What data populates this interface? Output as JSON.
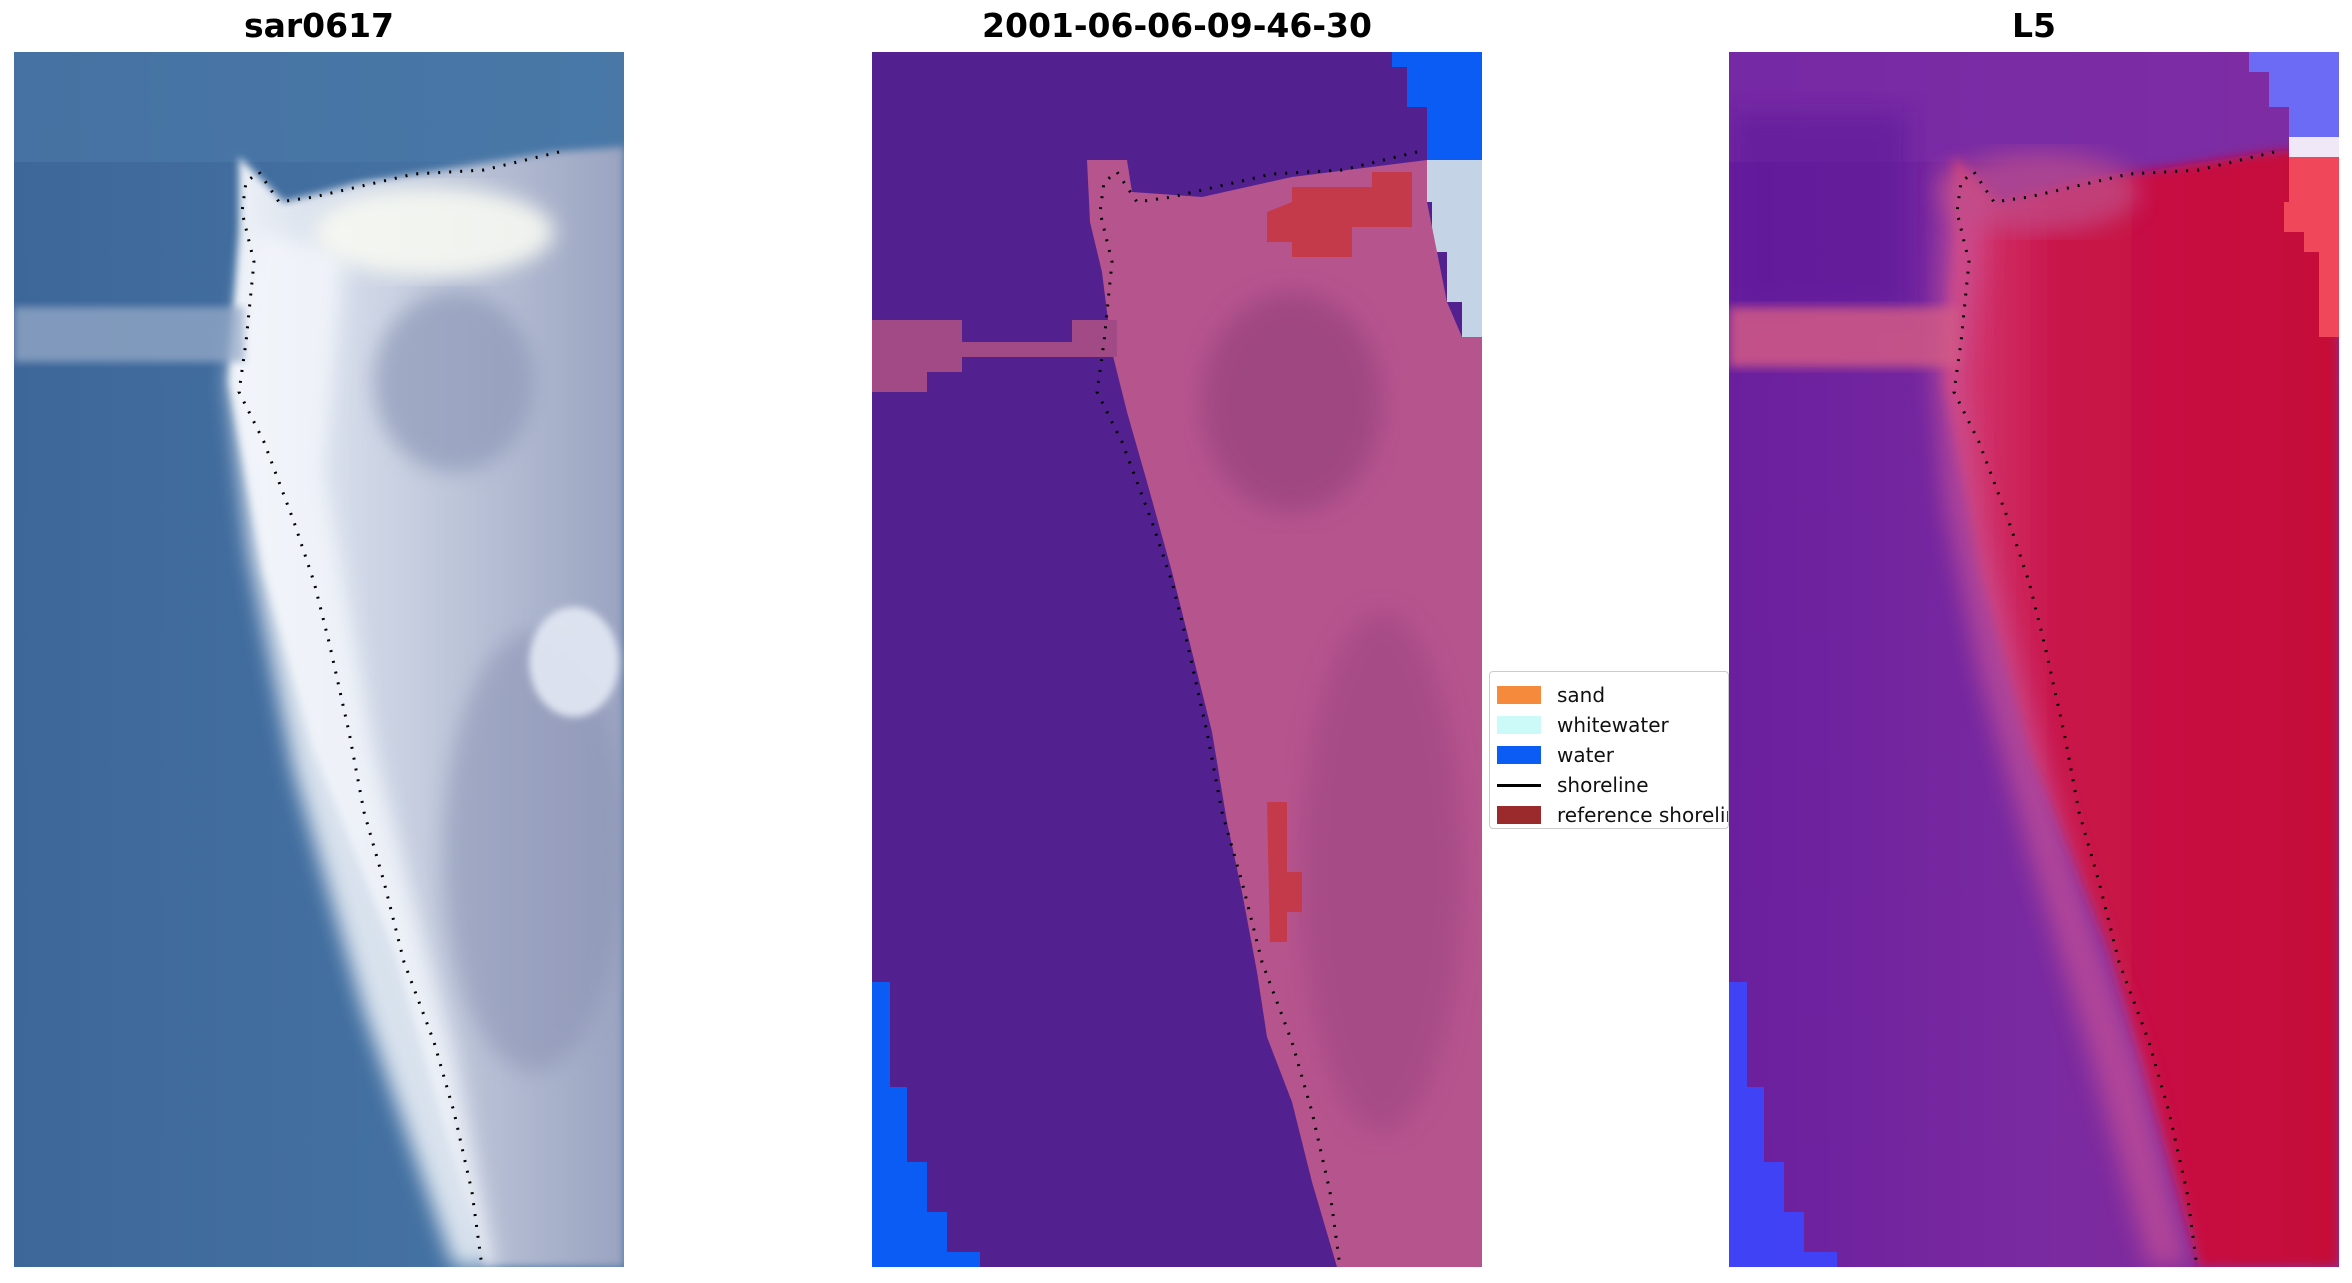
{
  "panels": [
    {
      "title": "sar0617"
    },
    {
      "title": "2001-06-06-09-46-30"
    },
    {
      "title": "L5"
    }
  ],
  "legend": {
    "items": [
      {
        "label": "sand",
        "color": "#f58a3c",
        "kind": "patch"
      },
      {
        "label": "whitewater",
        "color": "#ccfaf8",
        "kind": "patch"
      },
      {
        "label": "water",
        "color": "#0a5cf5",
        "kind": "patch"
      },
      {
        "label": "shoreline",
        "color": "#000000",
        "kind": "line"
      },
      {
        "label": "reference shoreline",
        "color": "#9b2a2c",
        "kind": "patch"
      }
    ]
  },
  "colors": {
    "rgb_water": "#3f6fa0",
    "rgb_sand": "#e4eaf4",
    "class_water_dark": "#52218f",
    "class_sand_pink": "#b6548e",
    "class_blob_red": "#c53a4a",
    "class_water_blue": "#0a5cf5",
    "index_water_purple": "#6b1f9c",
    "index_land_red": "#c80a3a",
    "index_water_blue": "#3c46ff"
  }
}
